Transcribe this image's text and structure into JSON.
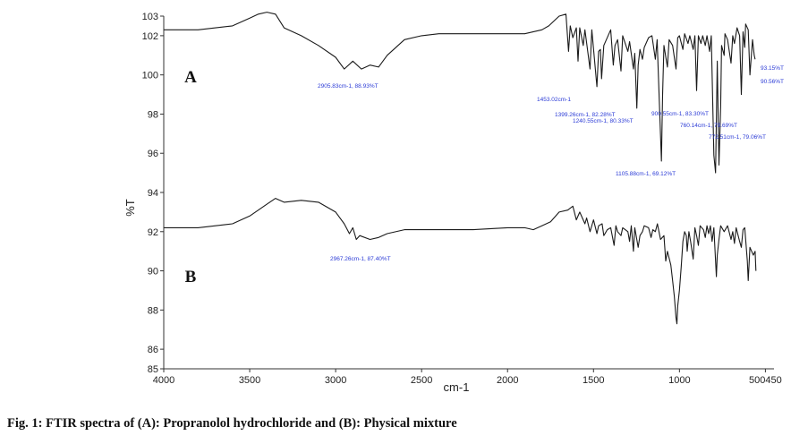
{
  "caption": "Fig. 1: FTIR spectra of (A): Propranolol hydrochloride and (B): Physical mixture",
  "chart_data": {
    "type": "line",
    "title": "",
    "xlabel": "cm-1",
    "ylabel": "%T",
    "xlim": [
      4000,
      450
    ],
    "ylim": [
      85,
      103
    ],
    "x_reversed": true,
    "x_ticks": [
      "4000",
      "3500",
      "3000",
      "2500",
      "2000",
      "1500",
      "1000",
      "500450"
    ],
    "y_ticks": [
      "85",
      "86",
      "88",
      "90",
      "92",
      "94",
      "96",
      "98",
      "100",
      "102",
      "103"
    ],
    "grid": false,
    "series": [
      {
        "name": "A",
        "color": "#1a1a1a",
        "points": [
          [
            4000,
            102.3
          ],
          [
            3800,
            102.3
          ],
          [
            3600,
            102.5
          ],
          [
            3500,
            102.9
          ],
          [
            3450,
            103.1
          ],
          [
            3400,
            103.2
          ],
          [
            3350,
            103.1
          ],
          [
            3300,
            102.4
          ],
          [
            3200,
            102.0
          ],
          [
            3100,
            101.5
          ],
          [
            3000,
            100.9
          ],
          [
            2950,
            100.3
          ],
          [
            2900,
            100.7
          ],
          [
            2850,
            100.3
          ],
          [
            2800,
            100.5
          ],
          [
            2750,
            100.4
          ],
          [
            2700,
            101.0
          ],
          [
            2600,
            101.8
          ],
          [
            2500,
            102.0
          ],
          [
            2400,
            102.1
          ],
          [
            2200,
            102.1
          ],
          [
            2000,
            102.1
          ],
          [
            1900,
            102.1
          ],
          [
            1800,
            102.3
          ],
          [
            1760,
            102.5
          ],
          [
            1700,
            103.0
          ],
          [
            1660,
            103.1
          ],
          [
            1645,
            101.2
          ],
          [
            1635,
            102.5
          ],
          [
            1620,
            101.9
          ],
          [
            1600,
            102.4
          ],
          [
            1590,
            100.7
          ],
          [
            1580,
            102.4
          ],
          [
            1560,
            101.5
          ],
          [
            1550,
            102.3
          ],
          [
            1520,
            100.3
          ],
          [
            1510,
            102.3
          ],
          [
            1480,
            99.4
          ],
          [
            1470,
            101.2
          ],
          [
            1460,
            101.3
          ],
          [
            1453,
            99.8
          ],
          [
            1440,
            101.5
          ],
          [
            1400,
            102.3
          ],
          [
            1385,
            100.5
          ],
          [
            1375,
            101.5
          ],
          [
            1360,
            101.8
          ],
          [
            1340,
            100.2
          ],
          [
            1330,
            102.0
          ],
          [
            1300,
            101.2
          ],
          [
            1290,
            101.7
          ],
          [
            1268,
            100.3
          ],
          [
            1260,
            101.1
          ],
          [
            1248,
            98.3
          ],
          [
            1240,
            100.5
          ],
          [
            1230,
            101.3
          ],
          [
            1215,
            100.8
          ],
          [
            1205,
            101.4
          ],
          [
            1180,
            101.9
          ],
          [
            1160,
            102.0
          ],
          [
            1140,
            100.8
          ],
          [
            1130,
            101.8
          ],
          [
            1105,
            95.6
          ],
          [
            1098,
            99.0
          ],
          [
            1090,
            101.5
          ],
          [
            1070,
            100.4
          ],
          [
            1060,
            101.8
          ],
          [
            1040,
            101.5
          ],
          [
            1020,
            100.3
          ],
          [
            1010,
            101.9
          ],
          [
            1000,
            102.0
          ],
          [
            980,
            101.3
          ],
          [
            970,
            102.1
          ],
          [
            950,
            101.6
          ],
          [
            940,
            102.0
          ],
          [
            920,
            101.3
          ],
          [
            910,
            102.0
          ],
          [
            900,
            99.2
          ],
          [
            890,
            102.0
          ],
          [
            875,
            101.6
          ],
          [
            865,
            102.0
          ],
          [
            850,
            101.5
          ],
          [
            840,
            102.0
          ],
          [
            825,
            101.2
          ],
          [
            815,
            102.0
          ],
          [
            800,
            95.9
          ],
          [
            790,
            95.0
          ],
          [
            780,
            100.7
          ],
          [
            770,
            95.4
          ],
          [
            760,
            98.4
          ],
          [
            755,
            101.5
          ],
          [
            740,
            101.0
          ],
          [
            735,
            102.1
          ],
          [
            720,
            101.8
          ],
          [
            700,
            100.6
          ],
          [
            690,
            102.0
          ],
          [
            680,
            101.6
          ],
          [
            665,
            102.4
          ],
          [
            650,
            102.0
          ],
          [
            640,
            99.0
          ],
          [
            630,
            102.2
          ],
          [
            620,
            101.4
          ],
          [
            615,
            102.6
          ],
          [
            600,
            102.3
          ],
          [
            590,
            100.0
          ],
          [
            575,
            101.8
          ],
          [
            565,
            101.0
          ],
          [
            560,
            100.8
          ]
        ]
      },
      {
        "name": "B",
        "color": "#1a1a1a",
        "points": [
          [
            4000,
            92.2
          ],
          [
            3800,
            92.2
          ],
          [
            3600,
            92.4
          ],
          [
            3500,
            92.8
          ],
          [
            3400,
            93.4
          ],
          [
            3350,
            93.7
          ],
          [
            3300,
            93.5
          ],
          [
            3200,
            93.6
          ],
          [
            3100,
            93.5
          ],
          [
            3000,
            93.0
          ],
          [
            2950,
            92.4
          ],
          [
            2920,
            91.9
          ],
          [
            2900,
            92.2
          ],
          [
            2880,
            91.6
          ],
          [
            2860,
            91.8
          ],
          [
            2800,
            91.6
          ],
          [
            2750,
            91.7
          ],
          [
            2700,
            91.9
          ],
          [
            2600,
            92.1
          ],
          [
            2400,
            92.1
          ],
          [
            2200,
            92.1
          ],
          [
            2000,
            92.2
          ],
          [
            1900,
            92.2
          ],
          [
            1850,
            92.1
          ],
          [
            1800,
            92.3
          ],
          [
            1750,
            92.5
          ],
          [
            1700,
            93.0
          ],
          [
            1650,
            93.1
          ],
          [
            1620,
            93.3
          ],
          [
            1600,
            92.6
          ],
          [
            1580,
            93.0
          ],
          [
            1550,
            92.4
          ],
          [
            1540,
            92.7
          ],
          [
            1520,
            92.0
          ],
          [
            1500,
            92.6
          ],
          [
            1480,
            91.9
          ],
          [
            1470,
            92.3
          ],
          [
            1450,
            92.4
          ],
          [
            1440,
            91.8
          ],
          [
            1420,
            92.1
          ],
          [
            1400,
            92.2
          ],
          [
            1380,
            91.3
          ],
          [
            1370,
            92.3
          ],
          [
            1360,
            92.0
          ],
          [
            1340,
            91.8
          ],
          [
            1330,
            92.2
          ],
          [
            1300,
            92.0
          ],
          [
            1290,
            91.5
          ],
          [
            1280,
            92.3
          ],
          [
            1268,
            91.0
          ],
          [
            1260,
            92.2
          ],
          [
            1240,
            91.2
          ],
          [
            1230,
            91.8
          ],
          [
            1215,
            92.0
          ],
          [
            1205,
            92.3
          ],
          [
            1180,
            92.2
          ],
          [
            1165,
            91.7
          ],
          [
            1155,
            92.1
          ],
          [
            1140,
            92.0
          ],
          [
            1128,
            92.4
          ],
          [
            1110,
            91.6
          ],
          [
            1090,
            91.8
          ],
          [
            1080,
            90.5
          ],
          [
            1070,
            91.0
          ],
          [
            1050,
            90.3
          ],
          [
            1040,
            89.5
          ],
          [
            1030,
            88.7
          ],
          [
            1020,
            87.6
          ],
          [
            1015,
            87.3
          ],
          [
            1010,
            88.2
          ],
          [
            1000,
            89.0
          ],
          [
            990,
            90.2
          ],
          [
            980,
            91.5
          ],
          [
            970,
            92.0
          ],
          [
            960,
            91.8
          ],
          [
            955,
            91.0
          ],
          [
            945,
            92.0
          ],
          [
            935,
            91.5
          ],
          [
            920,
            90.6
          ],
          [
            910,
            92.2
          ],
          [
            900,
            91.8
          ],
          [
            890,
            91.3
          ],
          [
            880,
            92.3
          ],
          [
            860,
            92.1
          ],
          [
            850,
            91.7
          ],
          [
            840,
            92.3
          ],
          [
            830,
            91.9
          ],
          [
            820,
            92.3
          ],
          [
            810,
            91.5
          ],
          [
            800,
            92.2
          ],
          [
            790,
            90.5
          ],
          [
            785,
            89.7
          ],
          [
            780,
            90.8
          ],
          [
            770,
            91.6
          ],
          [
            760,
            92.3
          ],
          [
            740,
            92.0
          ],
          [
            720,
            92.3
          ],
          [
            700,
            91.6
          ],
          [
            690,
            92.0
          ],
          [
            680,
            91.4
          ],
          [
            670,
            92.2
          ],
          [
            650,
            91.5
          ],
          [
            640,
            91.2
          ],
          [
            630,
            92.1
          ],
          [
            620,
            92.2
          ],
          [
            605,
            90.5
          ],
          [
            600,
            89.5
          ],
          [
            590,
            91.2
          ],
          [
            580,
            91.0
          ],
          [
            570,
            90.8
          ],
          [
            560,
            91.0
          ],
          [
            555,
            90.0
          ]
        ]
      }
    ],
    "panel_labels": [
      "A",
      "B"
    ],
    "peak_annotations": {
      "A": [
        "2905.83cm-1, 88.93%T",
        "1453.02cm-1",
        "1399.26cm-1, 82.28%T",
        "1240.55cm-1, 80.33%T",
        "1105.88cm-1, 69.12%T",
        "900.55cm-1, 83.30%T",
        "760.14cm-1, 79.69%T",
        "772.51cm-1, 79.06%T",
        "93.15%T",
        "90.56%T"
      ],
      "B": [
        "2967.26cm-1, 87.40%T"
      ]
    }
  }
}
